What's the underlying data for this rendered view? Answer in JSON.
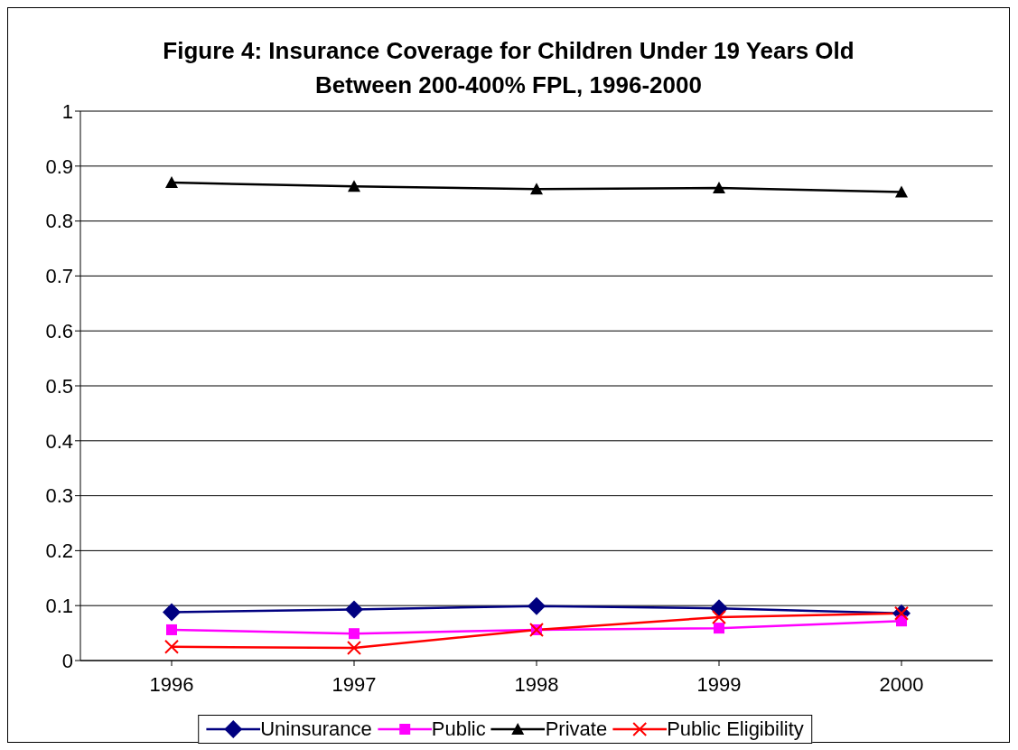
{
  "chart_data": {
    "type": "line",
    "title": "Figure 4: Insurance Coverage for Children Under 19 Years Old Between 200-400% FPL, 1996-2000",
    "categories": [
      "1996",
      "1997",
      "1998",
      "1999",
      "2000"
    ],
    "series": [
      {
        "name": "Uninsurance",
        "color": "#000080",
        "marker": "diamond",
        "values": [
          0.088,
          0.093,
          0.099,
          0.095,
          0.086
        ]
      },
      {
        "name": "Public",
        "color": "#ff00ff",
        "marker": "square",
        "values": [
          0.056,
          0.049,
          0.056,
          0.059,
          0.072
        ]
      },
      {
        "name": "Private",
        "color": "#000000",
        "marker": "triangle",
        "values": [
          0.87,
          0.863,
          0.858,
          0.86,
          0.853
        ]
      },
      {
        "name": "Public Eligibility",
        "color": "#ff0000",
        "marker": "cross",
        "values": [
          0.025,
          0.023,
          0.056,
          0.079,
          0.086
        ]
      }
    ],
    "ylim": [
      0,
      1
    ],
    "yticks": [
      0,
      0.1,
      0.2,
      0.3,
      0.4,
      0.5,
      0.6,
      0.7,
      0.8,
      0.9,
      1
    ],
    "grid": "y",
    "legend": "bottom",
    "line_style": "solid"
  }
}
